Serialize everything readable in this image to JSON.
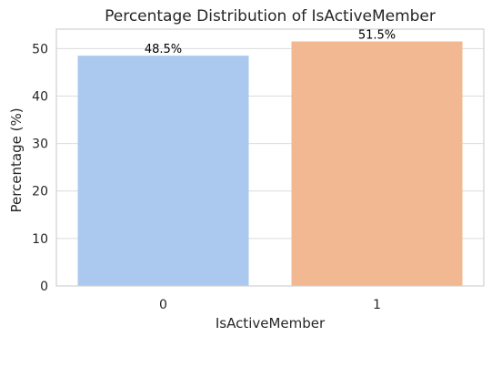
{
  "chart_data": {
    "type": "bar",
    "title": "Percentage Distribution of IsActiveMember",
    "xlabel": "IsActiveMember",
    "ylabel": "Percentage (%)",
    "categories": [
      "0",
      "1"
    ],
    "values": [
      48.5,
      51.5
    ],
    "data_labels": [
      "48.5%",
      "51.5%"
    ],
    "colors": [
      "#abc9ee",
      "#f1b892"
    ],
    "ylim": [
      0,
      54.1
    ],
    "yticks": [
      0,
      10,
      20,
      30,
      40,
      50
    ],
    "ytick_labels": [
      "0",
      "10",
      "20",
      "30",
      "40",
      "50"
    ],
    "grid": true,
    "legend": "none"
  }
}
